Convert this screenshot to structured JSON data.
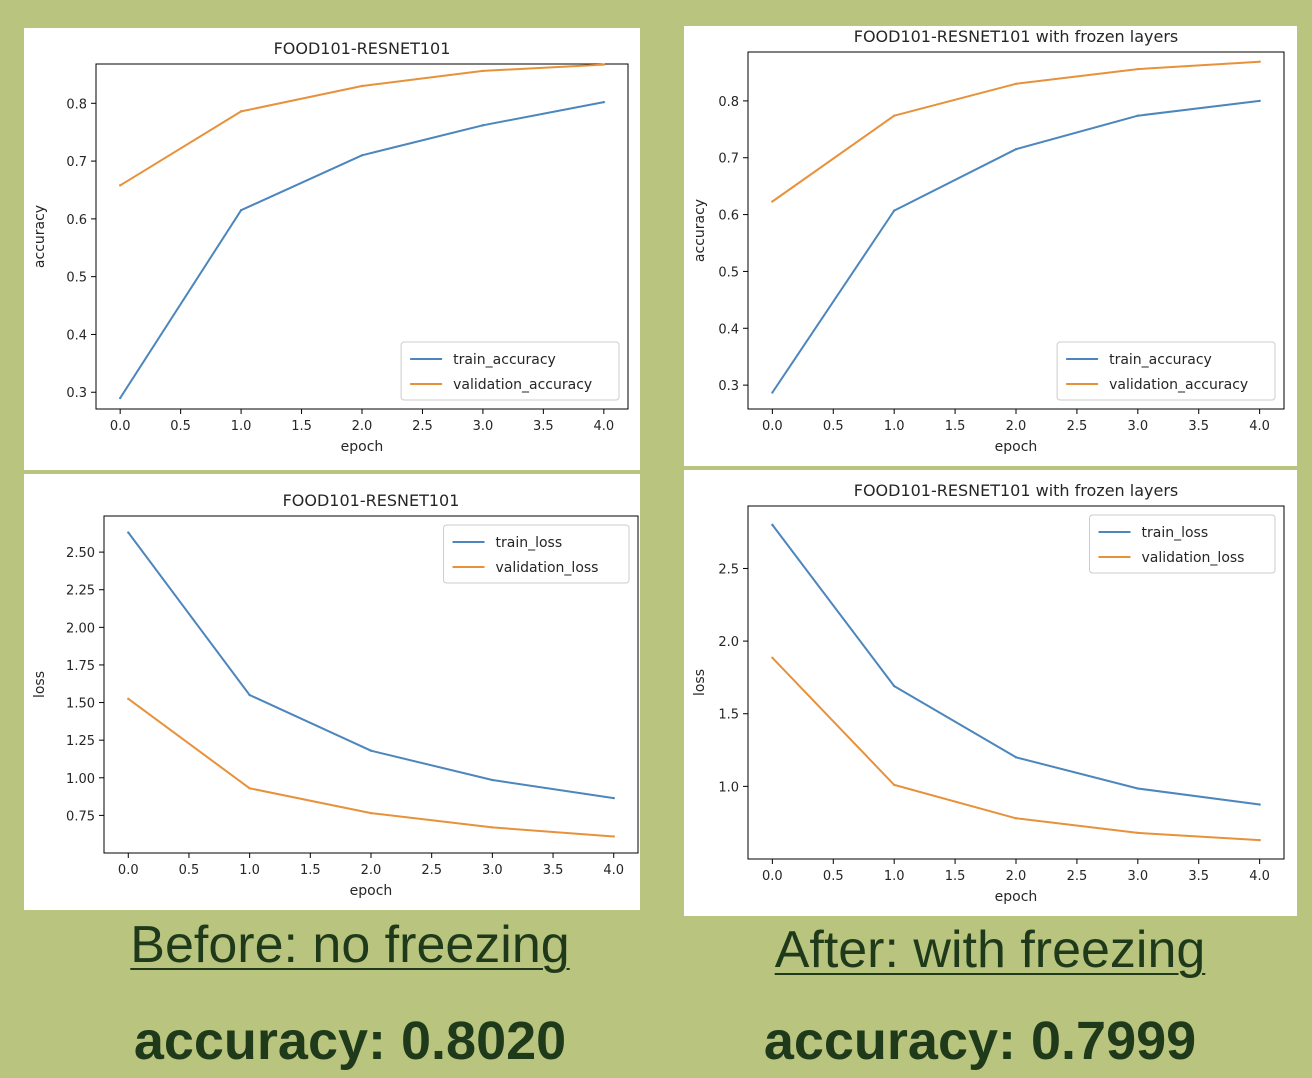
{
  "colors": {
    "train": "#4c86bd",
    "validation": "#e8913b",
    "background": "#b9c47f",
    "caption": "#1f3a1a"
  },
  "captions": {
    "left_heading": "Before: no freezing ",
    "right_heading": "After: with freezing ",
    "left_metric_label": "accuracy: ",
    "left_metric_value": "0.8020",
    "right_metric_label": "accuracy: ",
    "right_metric_value": "0.7999"
  },
  "chart_data": [
    {
      "id": "before-accuracy",
      "type": "line",
      "title": "FOOD101-RESNET101",
      "xlabel": "epoch",
      "ylabel": "accuracy",
      "x": [
        0,
        1,
        2,
        3,
        4
      ],
      "xlim": [
        -0.2,
        4.2
      ],
      "ylim": [
        0.271,
        0.868
      ],
      "xticks": [
        "0.0",
        "0.5",
        "1.0",
        "1.5",
        "2.0",
        "2.5",
        "3.0",
        "3.5",
        "4.0"
      ],
      "yticks": [
        "0.3",
        "0.4",
        "0.5",
        "0.6",
        "0.7",
        "0.8"
      ],
      "legend_position": "lower-right",
      "grid": false,
      "series": [
        {
          "name": "train_accuracy",
          "values": [
            0.29,
            0.615,
            0.71,
            0.762,
            0.802
          ]
        },
        {
          "name": "validation_accuracy",
          "values": [
            0.658,
            0.786,
            0.83,
            0.856,
            0.867
          ]
        }
      ]
    },
    {
      "id": "after-accuracy",
      "type": "line",
      "title": "FOOD101-RESNET101 with frozen layers",
      "xlabel": "epoch",
      "ylabel": "accuracy",
      "x": [
        0,
        1,
        2,
        3,
        4
      ],
      "xlim": [
        -0.2,
        4.2
      ],
      "ylim": [
        0.258,
        0.886
      ],
      "xticks": [
        "0.0",
        "0.5",
        "1.0",
        "1.5",
        "2.0",
        "2.5",
        "3.0",
        "3.5",
        "4.0"
      ],
      "yticks": [
        "0.3",
        "0.4",
        "0.5",
        "0.6",
        "0.7",
        "0.8"
      ],
      "legend_position": "lower-right",
      "grid": false,
      "series": [
        {
          "name": "train_accuracy",
          "values": [
            0.287,
            0.607,
            0.715,
            0.774,
            0.8
          ]
        },
        {
          "name": "validation_accuracy",
          "values": [
            0.623,
            0.774,
            0.83,
            0.856,
            0.869
          ]
        }
      ]
    },
    {
      "id": "before-loss",
      "type": "line",
      "title": "FOOD101-RESNET101",
      "xlabel": "epoch",
      "ylabel": "loss",
      "x": [
        0,
        1,
        2,
        3,
        4
      ],
      "xlim": [
        -0.2,
        4.2
      ],
      "ylim": [
        0.5,
        2.74
      ],
      "xticks": [
        "0.0",
        "0.5",
        "1.0",
        "1.5",
        "2.0",
        "2.5",
        "3.0",
        "3.5",
        "4.0"
      ],
      "yticks": [
        "0.75",
        "1.00",
        "1.25",
        "1.50",
        "1.75",
        "2.00",
        "2.25",
        "2.50"
      ],
      "legend_position": "upper-right",
      "grid": false,
      "series": [
        {
          "name": "train_loss",
          "values": [
            2.63,
            1.55,
            1.18,
            0.985,
            0.865
          ]
        },
        {
          "name": "validation_loss",
          "values": [
            1.525,
            0.93,
            0.765,
            0.67,
            0.61
          ]
        }
      ]
    },
    {
      "id": "after-loss",
      "type": "line",
      "title": "FOOD101-RESNET101 with frozen layers",
      "xlabel": "epoch",
      "ylabel": "loss",
      "x": [
        0,
        1,
        2,
        3,
        4
      ],
      "xlim": [
        -0.2,
        4.2
      ],
      "ylim": [
        0.5,
        2.93
      ],
      "xticks": [
        "0.0",
        "0.5",
        "1.0",
        "1.5",
        "2.0",
        "2.5",
        "3.0",
        "3.5",
        "4.0"
      ],
      "yticks": [
        "1.0",
        "1.5",
        "2.0",
        "2.5"
      ],
      "legend_position": "upper-right",
      "grid": false,
      "series": [
        {
          "name": "train_loss",
          "values": [
            2.8,
            1.69,
            1.2,
            0.985,
            0.875
          ]
        },
        {
          "name": "validation_loss",
          "values": [
            1.885,
            1.01,
            0.78,
            0.68,
            0.63
          ]
        }
      ]
    }
  ]
}
